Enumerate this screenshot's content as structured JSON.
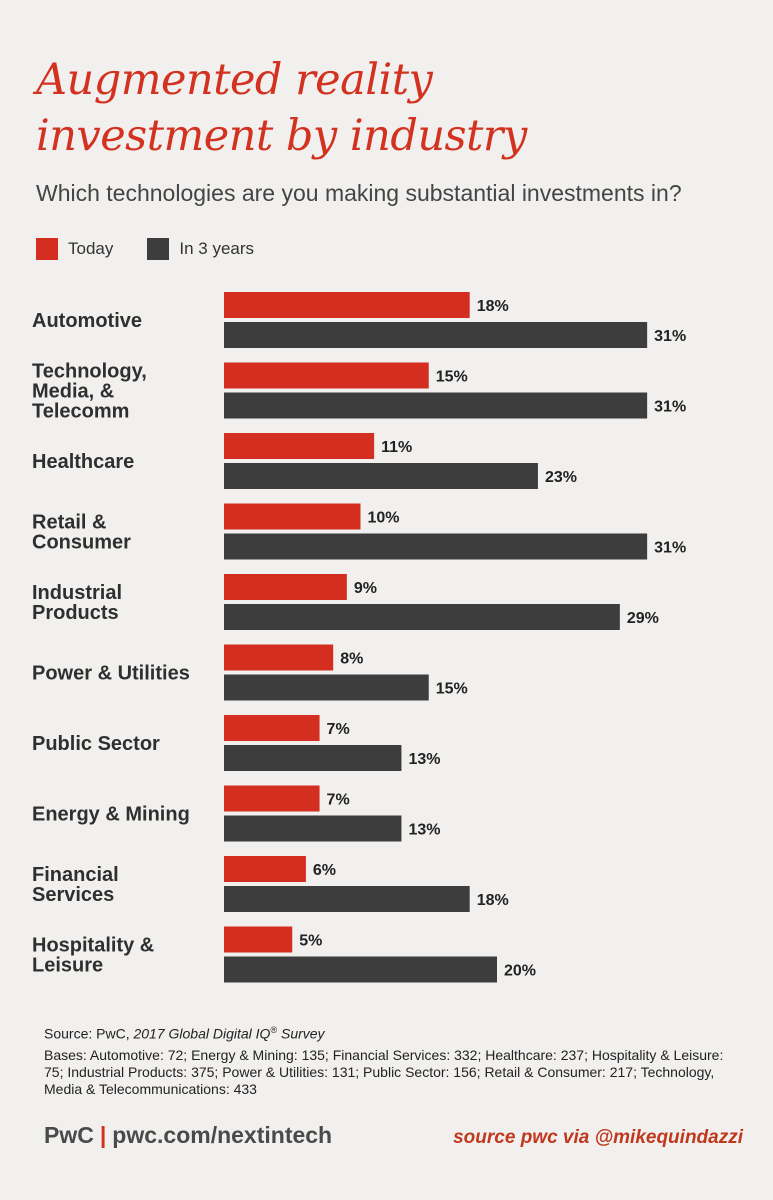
{
  "header": {
    "title_line1": "Augmented reality",
    "title_line2": "investment by industry",
    "subtitle": "Which technologies are you making substantial investments in?"
  },
  "colors": {
    "today": "#d42e20",
    "in3years": "#3d3d3d",
    "accent": "#d2321f",
    "background": "#f1f0ee"
  },
  "chart_data": {
    "type": "bar",
    "orientation": "horizontal",
    "categories": [
      [
        "Automotive"
      ],
      [
        "Technology,",
        "Media, &",
        "Telecomm"
      ],
      [
        "Healthcare"
      ],
      [
        "Retail &",
        "Consumer"
      ],
      [
        "Industrial",
        "Products"
      ],
      [
        "Power & Utilities"
      ],
      [
        "Public Sector"
      ],
      [
        "Energy & Mining"
      ],
      [
        "Financial",
        "Services"
      ],
      [
        "Hospitality &",
        "Leisure"
      ]
    ],
    "series": [
      {
        "name": "Today",
        "values": [
          18,
          15,
          11,
          10,
          9,
          8,
          7,
          7,
          6,
          5
        ]
      },
      {
        "name": "In 3 years",
        "values": [
          31,
          31,
          23,
          31,
          29,
          15,
          13,
          13,
          18,
          20
        ]
      }
    ],
    "value_suffix": "%",
    "legend_position": "top-left",
    "grid": false
  },
  "source": {
    "prefix": "Source: PwC, ",
    "survey_name": "2017 Global Digital IQ",
    "survey_mark": "®",
    "survey_suffix": " Survey",
    "bases": "Bases: Automotive: 72; Energy & Mining: 135; Financial Services: 332; Healthcare: 237; Hospitality & Leisure: 75; Industrial Products: 375; Power & Utilities: 131; Public Sector: 156; Retail & Consumer: 217; Technology, Media & Telecommunications: 433"
  },
  "footer": {
    "brand": "PwC",
    "separator": "|",
    "url": "pwc.com/nextintech",
    "credit": "source pwc via @mikequindazzi"
  }
}
